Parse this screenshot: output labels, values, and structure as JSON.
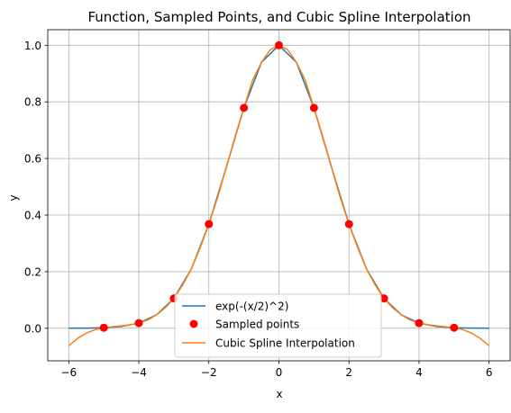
{
  "chart_data": {
    "type": "line",
    "title": "Function, Sampled Points, and Cubic Spline Interpolation",
    "xlabel": "x",
    "ylabel": "y",
    "xlim": [
      -6.6,
      6.6
    ],
    "ylim": [
      -0.115,
      1.055
    ],
    "xticks": [
      -6,
      -4,
      -2,
      0,
      2,
      4,
      6
    ],
    "xtick_labels": [
      "−6",
      "−4",
      "−2",
      "0",
      "2",
      "4",
      "6"
    ],
    "yticks": [
      0.0,
      0.2,
      0.4,
      0.6,
      0.8,
      1.0
    ],
    "ytick_labels": [
      "0.0",
      "0.2",
      "0.4",
      "0.6",
      "0.8",
      "1.0"
    ],
    "grid": true,
    "legend_position": "lower center",
    "series": [
      {
        "name": "exp(-(x/2)^2)",
        "kind": "line",
        "color": "#1f77b4",
        "x": [
          -6.0,
          -5.5,
          -5.0,
          -4.5,
          -4.0,
          -3.5,
          -3.0,
          -2.5,
          -2.0,
          -1.5,
          -1.0,
          -0.5,
          0.0,
          0.5,
          1.0,
          1.5,
          2.0,
          2.5,
          3.0,
          3.5,
          4.0,
          4.5,
          5.0,
          5.5,
          6.0
        ],
        "y": [
          0.0001,
          0.0005,
          0.0019,
          0.0063,
          0.0183,
          0.0468,
          0.1054,
          0.2096,
          0.3679,
          0.5698,
          0.7788,
          0.9394,
          1.0,
          0.9394,
          0.7788,
          0.5698,
          0.3679,
          0.2096,
          0.1054,
          0.0468,
          0.0183,
          0.0063,
          0.0019,
          0.0005,
          0.0001
        ]
      },
      {
        "name": "Sampled points",
        "kind": "scatter",
        "color": "#ff0000",
        "x": [
          -5,
          -4,
          -3,
          -2,
          -1,
          0,
          1,
          2,
          3,
          4,
          5
        ],
        "y": [
          0.0019,
          0.0183,
          0.1054,
          0.3679,
          0.7788,
          1.0,
          0.7788,
          0.3679,
          0.1054,
          0.0183,
          0.0019
        ]
      },
      {
        "name": "Cubic Spline Interpolation",
        "kind": "line",
        "color": "#ff7f0e",
        "x": [
          -6.0,
          -5.75,
          -5.5,
          -5.25,
          -5.0,
          -4.75,
          -4.5,
          -4.25,
          -4.0,
          -3.75,
          -3.5,
          -3.25,
          -3.0,
          -2.75,
          -2.5,
          -2.25,
          -2.0,
          -1.75,
          -1.5,
          -1.25,
          -1.0,
          -0.75,
          -0.5,
          -0.25,
          0.0,
          0.25,
          0.5,
          0.75,
          1.0,
          1.25,
          1.5,
          1.75,
          2.0,
          2.25,
          2.5,
          2.75,
          3.0,
          3.25,
          3.5,
          3.75,
          4.0,
          4.25,
          4.5,
          4.75,
          5.0,
          5.25,
          5.5,
          5.75,
          6.0
        ],
        "y": [
          -0.062,
          -0.036,
          -0.017,
          -0.005,
          0.0019,
          0.0055,
          0.0085,
          0.0125,
          0.0183,
          0.029,
          0.0468,
          0.072,
          0.1054,
          0.1525,
          0.2096,
          0.284,
          0.3679,
          0.4625,
          0.5698,
          0.678,
          0.7788,
          0.877,
          0.9394,
          0.984,
          1.0,
          0.984,
          0.9394,
          0.877,
          0.7788,
          0.678,
          0.5698,
          0.4625,
          0.3679,
          0.284,
          0.2096,
          0.1525,
          0.1054,
          0.072,
          0.0468,
          0.029,
          0.0183,
          0.0125,
          0.0085,
          0.0055,
          0.0019,
          -0.005,
          -0.017,
          -0.036,
          -0.062
        ]
      }
    ]
  }
}
